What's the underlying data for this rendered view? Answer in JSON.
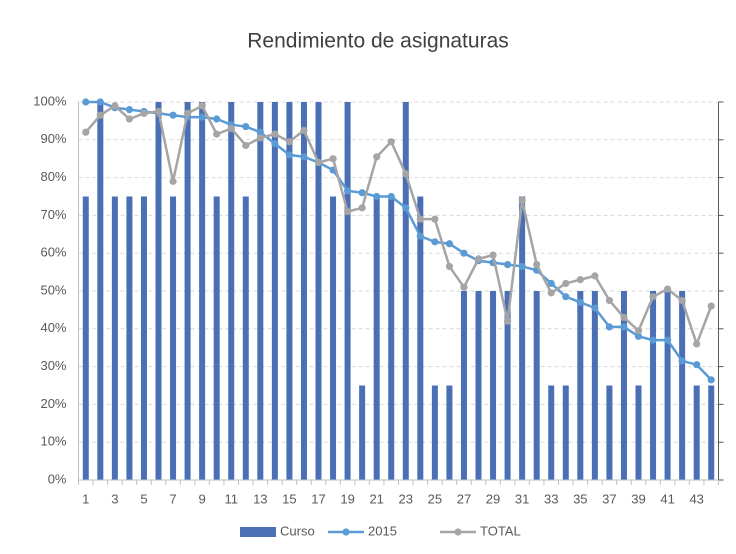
{
  "chart_data": {
    "type": "bar-line",
    "title": "Rendimiento de asignaturas",
    "categories": [
      "1",
      null,
      "3",
      null,
      "5",
      null,
      "7",
      null,
      "9",
      null,
      "11",
      null,
      "13",
      null,
      "15",
      null,
      "17",
      null,
      "19",
      null,
      "21",
      null,
      "23",
      null,
      "25",
      null,
      "27",
      null,
      "29",
      null,
      "31",
      null,
      "33",
      null,
      "35",
      null,
      "37",
      null,
      "39",
      null,
      "41",
      null,
      "43",
      null
    ],
    "series": [
      {
        "name": "Curso",
        "type": "bar",
        "color": "#4a6fb5",
        "values": [
          75,
          100,
          75,
          75,
          75,
          100,
          75,
          100,
          100,
          75,
          100,
          75,
          100,
          100,
          100,
          100,
          100,
          75,
          100,
          25,
          75,
          75,
          100,
          75,
          25,
          25,
          50,
          50,
          50,
          50,
          75,
          50,
          25,
          25,
          50,
          50,
          25,
          50,
          25,
          50,
          50,
          50,
          25,
          25
        ]
      },
      {
        "name": "2015",
        "type": "line",
        "color": "#5b9bd5",
        "values": [
          100,
          100,
          98.5,
          98,
          97.5,
          97,
          96.5,
          96,
          96,
          95.5,
          94,
          93.5,
          92,
          89,
          86,
          85.5,
          84,
          82,
          76.5,
          76,
          75,
          75,
          72,
          64.5,
          63,
          62.5,
          60,
          58,
          57.5,
          57,
          56.5,
          55.5,
          52,
          48.5,
          47,
          45.5,
          40.5,
          40.5,
          38,
          37,
          37,
          31.5,
          30.5,
          26.5
        ]
      },
      {
        "name": "TOTAL",
        "type": "line",
        "color": "#a5a5a5",
        "values": [
          92,
          96.5,
          99,
          95.5,
          97,
          97.5,
          79,
          97,
          99,
          91.5,
          93,
          88.5,
          90.5,
          91.5,
          89.5,
          92.5,
          84,
          85,
          71,
          72,
          85.5,
          89.5,
          81,
          69,
          69,
          56.5,
          51,
          58.5,
          59.5,
          42,
          74,
          57,
          49.5,
          52,
          53,
          54,
          47.5,
          43,
          39.5,
          48.5,
          50.5,
          47.5,
          36,
          46
        ]
      }
    ],
    "ylim": [
      0,
      100
    ],
    "yticks": [
      {
        "value": 0,
        "label": "0%"
      },
      {
        "value": 10,
        "label": "10%"
      },
      {
        "value": 20,
        "label": "20%"
      },
      {
        "value": 30,
        "label": "30%"
      },
      {
        "value": 40,
        "label": "40%"
      },
      {
        "value": 50,
        "label": "50%"
      },
      {
        "value": 60,
        "label": "60%"
      },
      {
        "value": 70,
        "label": "70%"
      },
      {
        "value": 80,
        "label": "80%"
      },
      {
        "value": 90,
        "label": "90%"
      },
      {
        "value": 100,
        "label": "100%"
      }
    ],
    "grid": true
  }
}
